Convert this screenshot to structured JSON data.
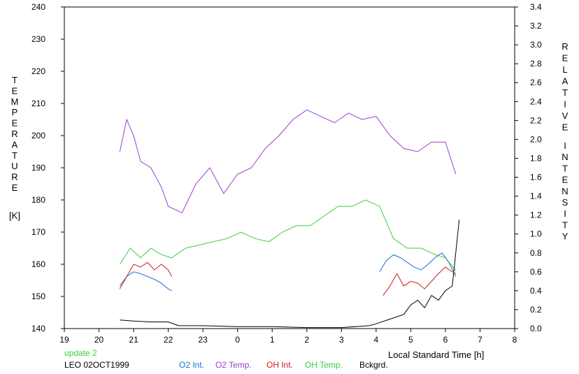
{
  "chart_data": {
    "type": "line",
    "x_axis": {
      "label": "Local Standard Time [h]",
      "ticks": [
        "19",
        "20",
        "21",
        "22",
        "23",
        "0",
        "1",
        "2",
        "3",
        "4",
        "5",
        "6",
        "7",
        "8"
      ],
      "range_hours": [
        19,
        32
      ]
    },
    "y_left": {
      "label_letters": [
        "T",
        "E",
        "M",
        "P",
        "E",
        "R",
        "A",
        "T",
        "U",
        "R",
        "E"
      ],
      "unit": "[K]",
      "ticks": [
        140,
        150,
        160,
        170,
        180,
        190,
        200,
        210,
        220,
        230,
        240
      ],
      "range": [
        140,
        240
      ]
    },
    "y_right": {
      "label_word1": [
        "R",
        "E",
        "L",
        "A",
        "T",
        "I",
        "V",
        "E"
      ],
      "label_word2": [
        "I",
        "N",
        "T",
        "E",
        "N",
        "S",
        "I",
        "T",
        "Y"
      ],
      "ticks": [
        "0.0",
        "0.2",
        "0.4",
        "0.6",
        "0.8",
        "1.0",
        "1.2",
        "1.4",
        "1.6",
        "1.8",
        "2.0",
        "2.2",
        "2.4",
        "2.6",
        "2.8",
        "3.0",
        "3.2",
        "3.4"
      ],
      "range": [
        0,
        3.4
      ]
    },
    "series": [
      {
        "name": "O2 Int.",
        "color": "#1a6fd6",
        "axis": "right",
        "segments": [
          {
            "t": [
              20.6,
              20.8,
              21.0,
              21.2,
              21.4,
              21.6,
              21.8,
              22.0,
              22.1
            ],
            "y": [
              0.45,
              0.55,
              0.6,
              0.58,
              0.55,
              0.52,
              0.48,
              0.42,
              0.4
            ]
          },
          {
            "t": [
              28.1,
              28.3,
              28.5,
              28.7,
              28.9,
              29.1,
              29.3,
              29.5,
              29.7,
              29.9,
              30.1,
              30.3
            ],
            "y": [
              0.6,
              0.72,
              0.78,
              0.75,
              0.7,
              0.65,
              0.62,
              0.68,
              0.75,
              0.8,
              0.7,
              0.55
            ]
          }
        ]
      },
      {
        "name": "O2 Temp.",
        "color": "#9a3fd0",
        "axis": "left",
        "segments": [
          {
            "t": [
              20.6,
              20.8,
              21.0,
              21.2,
              21.5,
              21.8,
              22.0,
              22.4,
              22.8,
              23.2,
              23.6,
              24.0,
              24.4,
              24.8,
              25.2,
              25.6,
              26.0,
              26.4,
              26.8,
              27.2,
              27.6,
              28.0,
              28.4,
              28.8,
              29.2,
              29.6,
              30.0,
              30.3
            ],
            "y": [
              195,
              205,
              200,
              192,
              190,
              184,
              178,
              176,
              185,
              190,
              182,
              188,
              190,
              196,
              200,
              205,
              208,
              206,
              204,
              207,
              205,
              206,
              200,
              196,
              195,
              198,
              198,
              188
            ]
          }
        ]
      },
      {
        "name": "OH Int.",
        "color": "#d41a1a",
        "axis": "right",
        "segments": [
          {
            "t": [
              20.6,
              20.8,
              21.0,
              21.2,
              21.4,
              21.6,
              21.8,
              22.0,
              22.1
            ],
            "y": [
              0.42,
              0.55,
              0.68,
              0.65,
              0.7,
              0.62,
              0.68,
              0.62,
              0.55
            ]
          },
          {
            "t": [
              28.2,
              28.4,
              28.6,
              28.8,
              29.0,
              29.2,
              29.4,
              29.6,
              29.8,
              30.0,
              30.2,
              30.3
            ],
            "y": [
              0.35,
              0.45,
              0.58,
              0.45,
              0.5,
              0.48,
              0.42,
              0.5,
              0.58,
              0.65,
              0.6,
              0.58
            ]
          }
        ]
      },
      {
        "name": "OH Temp.",
        "color": "#3ccc3c",
        "axis": "left",
        "segments": [
          {
            "t": [
              20.6,
              20.9,
              21.2,
              21.5,
              21.8,
              22.1,
              22.5,
              22.9,
              23.3,
              23.7,
              24.1,
              24.5,
              24.9,
              25.3,
              25.7,
              26.1,
              26.5,
              26.9,
              27.3,
              27.7,
              28.1,
              28.5,
              28.9,
              29.3,
              29.7,
              30.0,
              30.3
            ],
            "y": [
              160,
              165,
              162,
              165,
              163,
              162,
              165,
              166,
              167,
              168,
              170,
              168,
              167,
              170,
              172,
              172,
              175,
              178,
              178,
              180,
              178,
              168,
              165,
              165,
              163,
              162,
              158
            ]
          }
        ]
      },
      {
        "name": "Bckgrd.",
        "color": "#000000",
        "axis": "right",
        "segments": [
          {
            "t": [
              20.6,
              21.0,
              21.5,
              22.0,
              22.3,
              23.0,
              24.0,
              25.0,
              26.0,
              27.0,
              27.8,
              28.0,
              28.4,
              28.8,
              29.0,
              29.2,
              29.4,
              29.6,
              29.8,
              30.0,
              30.2,
              30.4
            ],
            "y": [
              0.09,
              0.08,
              0.07,
              0.07,
              0.03,
              0.03,
              0.02,
              0.02,
              0.01,
              0.01,
              0.03,
              0.05,
              0.1,
              0.15,
              0.25,
              0.3,
              0.22,
              0.35,
              0.3,
              0.4,
              0.45,
              1.15
            ]
          }
        ]
      }
    ]
  },
  "footer": {
    "update": "update 2",
    "station": "LEO 02OCT1999",
    "update_color": "#3ccc3c"
  }
}
